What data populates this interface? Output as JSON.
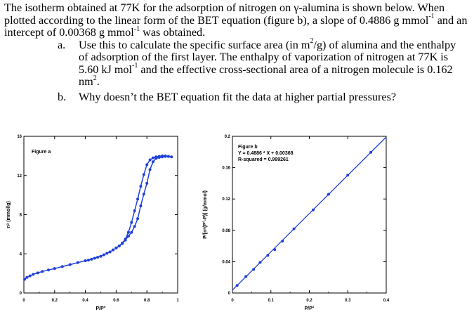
{
  "question": {
    "intro_pre_gamma": "The isotherm obtained at 77K for the adsorption of nitrogen on ",
    "gamma": "γ",
    "intro_post_gamma": "-alumina is shown below. When plotted according to the linear form of the BET equation (figure b), a slope of 0.4886 g mmol",
    "sup_minus1_a": "-1",
    "intro_mid": " and an intercept of 0.00368 g mmol",
    "sup_minus1_b": "-1",
    "intro_end": " was obtained.",
    "part_a_label": "a.",
    "part_a_1": "Use this to calculate the specific surface area (in m",
    "part_a_sup2": "2",
    "part_a_2": "/g) of alumina and the enthalpy of adsorption of the first layer. The enthalpy of vaporization of nitrogen at 77K is 5.60 kJ mol",
    "part_a_supm1": "-1",
    "part_a_3": " and the effective cross-sectional area of a nitrogen molecule is 0.162 nm",
    "part_a_sup2b": "2",
    "part_a_4": ".",
    "part_b_label": "b.",
    "part_b": "Why doesn’t the BET equation fit the data at higher partial pressures?"
  },
  "chart_data": [
    {
      "type": "line",
      "annotation": "Figure a",
      "xlabel": "P/P°",
      "ylabel": "nᵃ (mmol/g)",
      "xlim": [
        0,
        1
      ],
      "ylim": [
        0,
        16
      ],
      "xticks": [
        "0",
        "0.2",
        "0.4",
        "0.6",
        "0.8",
        "1"
      ],
      "yticks": [
        "0",
        "4",
        "8",
        "12",
        "16"
      ],
      "series": [
        {
          "x": [
            0.005,
            0.02,
            0.04,
            0.06,
            0.09,
            0.12,
            0.16,
            0.2,
            0.25,
            0.3,
            0.35,
            0.4,
            0.42,
            0.44,
            0.46,
            0.48,
            0.5,
            0.52,
            0.54,
            0.56,
            0.58,
            0.6,
            0.62,
            0.64,
            0.66,
            0.68,
            0.7,
            0.72,
            0.74,
            0.76,
            0.78,
            0.8,
            0.82,
            0.84,
            0.86,
            0.88,
            0.9,
            0.92,
            0.94,
            0.96
          ],
          "y": [
            1.4,
            1.6,
            1.75,
            1.9,
            2.05,
            2.2,
            2.35,
            2.5,
            2.7,
            2.9,
            3.1,
            3.3,
            3.35,
            3.45,
            3.55,
            3.65,
            3.75,
            3.9,
            4.05,
            4.2,
            4.4,
            4.6,
            4.8,
            5.1,
            5.5,
            6.2,
            7.2,
            8.4,
            9.6,
            10.9,
            12.1,
            13.1,
            13.6,
            13.8,
            13.9,
            13.95,
            14.0,
            14.0,
            13.95,
            13.9
          ]
        },
        {
          "x": [
            0.94,
            0.92,
            0.9,
            0.88,
            0.86,
            0.84,
            0.82,
            0.8,
            0.78,
            0.76,
            0.74,
            0.72,
            0.7,
            0.68,
            0.66,
            0.64,
            0.62,
            0.6
          ],
          "y": [
            13.95,
            13.95,
            13.9,
            13.85,
            13.75,
            13.4,
            12.6,
            11.2,
            10.1,
            8.9,
            7.6,
            6.8,
            6.2,
            5.8,
            5.4,
            5.05,
            4.8,
            4.6
          ]
        }
      ]
    },
    {
      "type": "scatter",
      "annotation_title": "Figure b",
      "annotation_eq": "Y = 0.4886 * X + 0.00368",
      "annotation_r2": "R-squared = 0.999261",
      "xlabel": "P/P°",
      "ylabel": "P/[nᵃ(P°-P)] (g/mmol)",
      "xlim": [
        0,
        0.4
      ],
      "ylim": [
        0,
        0.2
      ],
      "xticks": [
        "0",
        "0.1",
        "0.2",
        "0.3",
        "0.4"
      ],
      "yticks": [
        "0",
        "0.04",
        "0.08",
        "0.12",
        "0.16",
        "0.2"
      ],
      "fit": {
        "slope": 0.4886,
        "intercept": 0.00368
      },
      "x": [
        0.012,
        0.035,
        0.055,
        0.072,
        0.092,
        0.11,
        0.13,
        0.16,
        0.21,
        0.25,
        0.3,
        0.36
      ],
      "y": [
        0.0095,
        0.021,
        0.03,
        0.039,
        0.048,
        0.0555,
        0.0661,
        0.082,
        0.106,
        0.126,
        0.1503,
        0.1796
      ]
    }
  ]
}
